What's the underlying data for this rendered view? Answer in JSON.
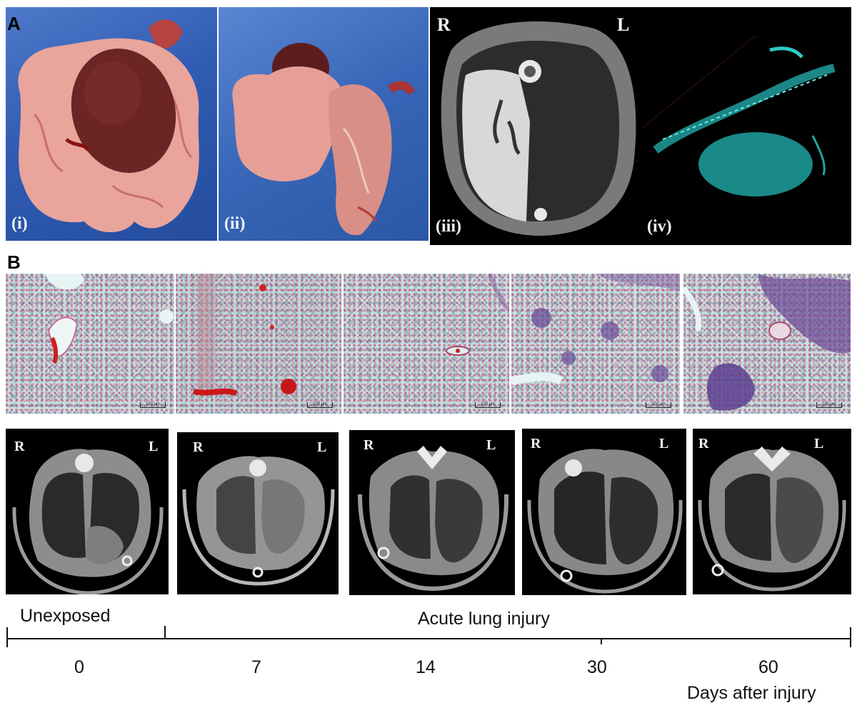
{
  "panel_a": {
    "label": "A",
    "sub_labels": [
      "(i)",
      "(ii)",
      "(iii)",
      "(iv)"
    ],
    "orientation_right": "R",
    "orientation_left": "L"
  },
  "panel_b": {
    "label": "B",
    "histology_scale": "100 µm",
    "ct_orientation_right": "R",
    "ct_orientation_left": "L"
  },
  "timeline": {
    "group_unexposed": "Unexposed",
    "group_injury": "Acute lung injury",
    "ticks": [
      "0",
      "7",
      "14",
      "30",
      "60"
    ],
    "axis_label": "Days after injury"
  },
  "colors": {
    "photo_background": "#3565b5",
    "tissue_pink": "#e8a199",
    "heart_red": "#6e2424",
    "render_cyan": "#27c6c4",
    "histo_pink": "#c85a86",
    "histo_teal": "#9fd6d4"
  }
}
